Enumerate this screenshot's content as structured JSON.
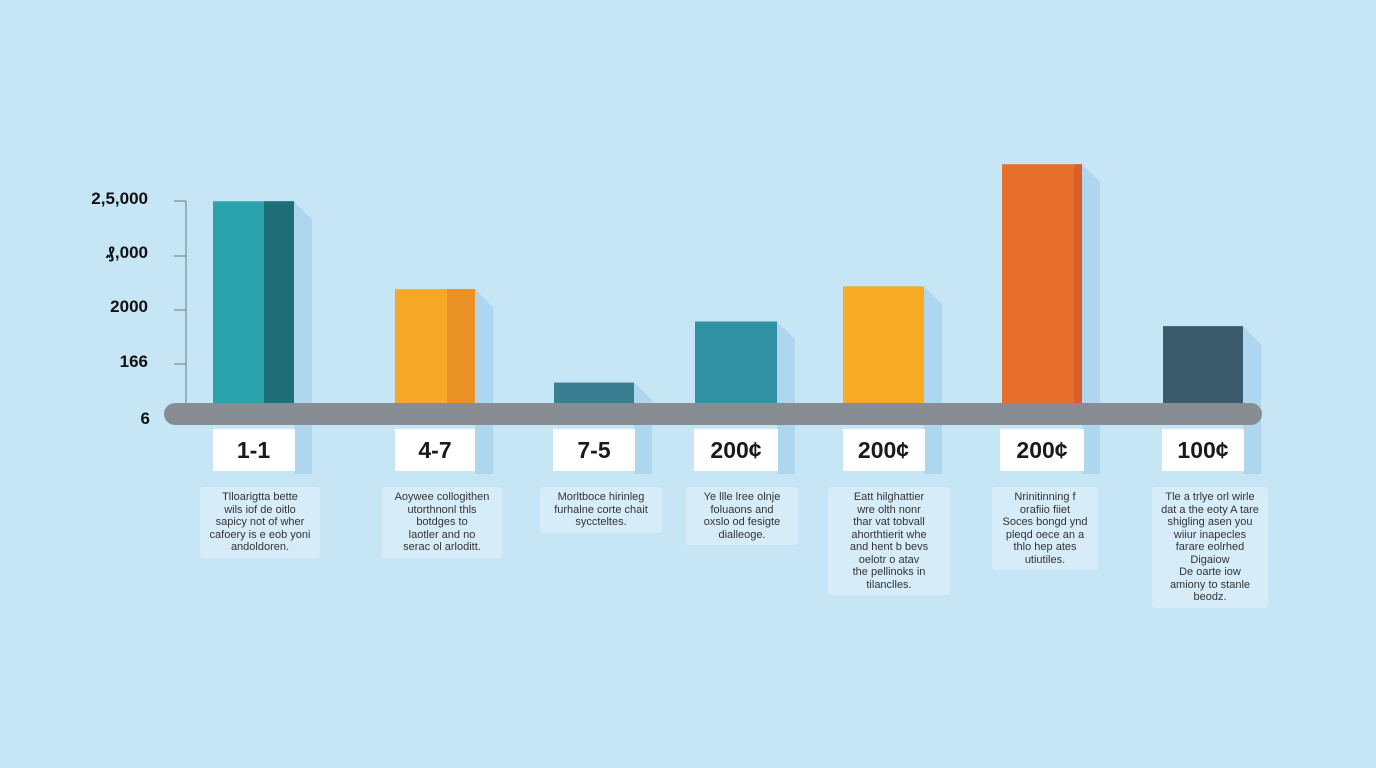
{
  "chart_data": {
    "type": "bar",
    "y_tick_labels": [
      "2,5,000",
      "₰,000",
      "2000",
      "166",
      "6"
    ],
    "categories": [
      "1-1",
      "4-7",
      "7-5",
      "200¢",
      "200¢",
      "200¢",
      "100¢"
    ],
    "values": [
      2300,
      1350,
      340,
      1000,
      1380,
      2700,
      950
    ],
    "colors": [
      "#2aa3ad",
      "#f8a828",
      "#3a7f91",
      "#2f91a2",
      "#f8aa24",
      "#e86e2c",
      "#3b5a6c"
    ],
    "shade_colors": [
      "#1d6e76",
      "#ea9225",
      null,
      null,
      null,
      "#d8602a",
      null
    ],
    "annotations": [
      "Tlloarigtta bette\nwils iof de oitlo\nsapicy not of wher\ncafoery is e eob yoni\nandoldoren.",
      "Aoywee collogithen\nutorthnonl thls\nbotdges to\nlaotler and no\nserac ol arloditt.",
      "Morltboce hirinleg\nfurhalne corte chait\nsyccteltes.",
      "Ye llle lree olnje\nfoluaons and\noxslo od fesigte\ndialleoge.",
      "Eatt hilghattier\nwre olth nonr\nthar vat tobvall\nahorthtierit whe\nand hent b bevs\noelotr o atav\nthe pellinoks in\ntilanclles.",
      "Nrinitinning f\norafiio fiiet\nSoces bongd ynd\npleqd oece an a\nthlo hep ates\nutiutiles.",
      "Tle a trlye orl wirle\ndat a the eoty A tare\nshigling asen you\nwiiur inapecles\nfarare eolrhed\nDigaiow\nDe oarte iow\namiony to stanle\nbeodz."
    ]
  }
}
